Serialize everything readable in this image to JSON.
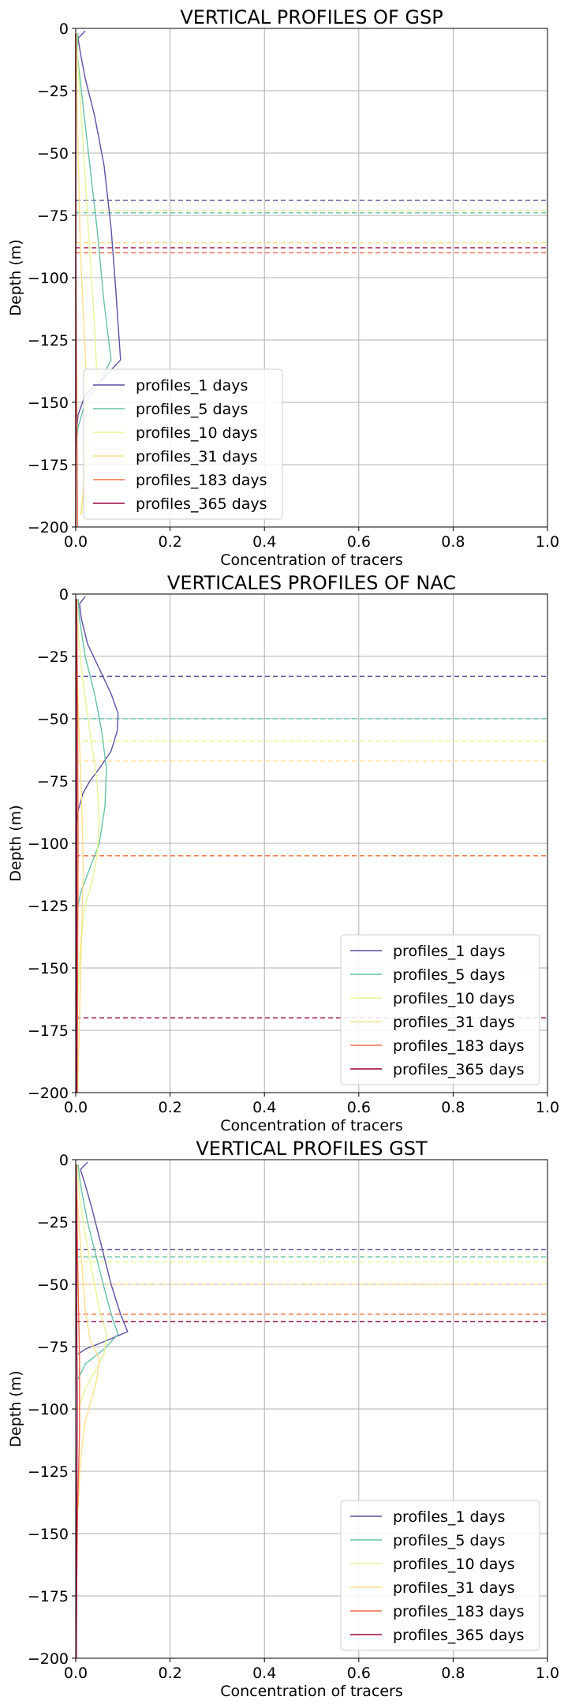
{
  "chart_data": [
    {
      "type": "line",
      "title": "VERTICAL PROFILES OF GSP",
      "xlabel": "Concentration of tracers",
      "ylabel": "Depth (m)",
      "xlim": [
        0,
        1
      ],
      "ylim": [
        -200,
        0
      ],
      "xticks": [
        "0.0",
        "0.2",
        "0.4",
        "0.6",
        "0.8",
        "1.0"
      ],
      "yticks": [
        "0",
        "−25",
        "−50",
        "−75",
        "−100",
        "−125",
        "−150",
        "−175",
        "−200"
      ],
      "grid": true,
      "legend_position": "lower-left",
      "series": [
        {
          "name": "profiles_1 days",
          "color": "#5e4fa2",
          "mld": -69,
          "points": [
            [
              0.02,
              -1
            ],
            [
              0.005,
              -4
            ],
            [
              0.01,
              -10
            ],
            [
              0.02,
              -20
            ],
            [
              0.04,
              -35
            ],
            [
              0.06,
              -55
            ],
            [
              0.075,
              -80
            ],
            [
              0.085,
              -105
            ],
            [
              0.095,
              -133
            ],
            [
              0.06,
              -140
            ],
            [
              0.02,
              -147
            ],
            [
              0.005,
              -155
            ],
            [
              0.0,
              -165
            ]
          ]
        },
        {
          "name": "profiles_5 days",
          "color": "#66c2a5",
          "mld": -74,
          "points": [
            [
              0.005,
              -2
            ],
            [
              0.003,
              -10
            ],
            [
              0.015,
              -30
            ],
            [
              0.03,
              -55
            ],
            [
              0.045,
              -80
            ],
            [
              0.06,
              -110
            ],
            [
              0.075,
              -133
            ],
            [
              0.05,
              -142
            ],
            [
              0.02,
              -150
            ],
            [
              0.005,
              -160
            ],
            [
              0.0,
              -168
            ]
          ]
        },
        {
          "name": "profiles_10 days",
          "color": "#e6f598",
          "mld": -73,
          "points": [
            [
              0.002,
              -2
            ],
            [
              0.003,
              -10
            ],
            [
              0.01,
              -30
            ],
            [
              0.02,
              -60
            ],
            [
              0.03,
              -90
            ],
            [
              0.04,
              -120
            ],
            [
              0.045,
              -140
            ],
            [
              0.035,
              -160
            ],
            [
              0.02,
              -180
            ],
            [
              0.01,
              -195
            ]
          ]
        },
        {
          "name": "profiles_31 days",
          "color": "#fee08b",
          "mld": -86,
          "points": [
            [
              0.0,
              -2
            ],
            [
              0.002,
              -20
            ],
            [
              0.005,
              -50
            ],
            [
              0.01,
              -90
            ],
            [
              0.02,
              -130
            ],
            [
              0.025,
              -155
            ],
            [
              0.02,
              -175
            ],
            [
              0.012,
              -195
            ]
          ]
        },
        {
          "name": "profiles_183 days",
          "color": "#f46d43",
          "mld": -90,
          "points": [
            [
              0.0,
              -2
            ],
            [
              0.0,
              -80
            ],
            [
              0.002,
              -150
            ],
            [
              0.004,
              -200
            ]
          ]
        },
        {
          "name": "profiles_365 days",
          "color": "#9e0142",
          "mld": -88,
          "points": [
            [
              0.0,
              -2
            ],
            [
              0.0,
              -100
            ],
            [
              0.0,
              -200
            ]
          ]
        }
      ]
    },
    {
      "type": "line",
      "title": "VERTICALES PROFILES OF NAC",
      "xlabel": "Concentration of tracers",
      "ylabel": "Depth (m)",
      "xlim": [
        0,
        1
      ],
      "ylim": [
        -200,
        0
      ],
      "xticks": [
        "0.0",
        "0.2",
        "0.4",
        "0.6",
        "0.8",
        "1.0"
      ],
      "yticks": [
        "0",
        "−25",
        "−50",
        "−75",
        "−100",
        "−125",
        "−150",
        "−175",
        "−200"
      ],
      "grid": true,
      "legend_position": "lower-right",
      "series": [
        {
          "name": "profiles_1 days",
          "color": "#5e4fa2",
          "mld": -33,
          "points": [
            [
              0.02,
              -1
            ],
            [
              0.008,
              -4
            ],
            [
              0.012,
              -10
            ],
            [
              0.025,
              -20
            ],
            [
              0.05,
              -30
            ],
            [
              0.075,
              -40
            ],
            [
              0.09,
              -48
            ],
            [
              0.088,
              -55
            ],
            [
              0.075,
              -63
            ],
            [
              0.05,
              -70
            ],
            [
              0.03,
              -75
            ],
            [
              0.015,
              -80
            ],
            [
              0.005,
              -87
            ],
            [
              0.0,
              -95
            ]
          ]
        },
        {
          "name": "profiles_5 days",
          "color": "#66c2a5",
          "mld": -50,
          "points": [
            [
              0.005,
              -2
            ],
            [
              0.008,
              -10
            ],
            [
              0.02,
              -25
            ],
            [
              0.04,
              -40
            ],
            [
              0.055,
              -55
            ],
            [
              0.065,
              -70
            ],
            [
              0.062,
              -85
            ],
            [
              0.05,
              -100
            ],
            [
              0.03,
              -110
            ],
            [
              0.01,
              -120
            ],
            [
              0.0,
              -130
            ]
          ]
        },
        {
          "name": "profiles_10 days",
          "color": "#e6f598",
          "mld": -59,
          "points": [
            [
              0.003,
              -2
            ],
            [
              0.005,
              -15
            ],
            [
              0.015,
              -35
            ],
            [
              0.03,
              -55
            ],
            [
              0.045,
              -75
            ],
            [
              0.05,
              -90
            ],
            [
              0.045,
              -105
            ],
            [
              0.035,
              -115
            ],
            [
              0.02,
              -125
            ],
            [
              0.01,
              -140
            ],
            [
              0.005,
              -160
            ],
            [
              0.002,
              -185
            ]
          ]
        },
        {
          "name": "profiles_31 days",
          "color": "#fee08b",
          "mld": -67,
          "points": [
            [
              0.0,
              -2
            ],
            [
              0.002,
              -20
            ],
            [
              0.006,
              -50
            ],
            [
              0.012,
              -80
            ],
            [
              0.016,
              -110
            ],
            [
              0.012,
              -140
            ],
            [
              0.008,
              -170
            ],
            [
              0.004,
              -200
            ]
          ]
        },
        {
          "name": "profiles_183 days",
          "color": "#f46d43",
          "mld": -105,
          "points": [
            [
              0.002,
              -2
            ],
            [
              0.004,
              -50
            ],
            [
              0.005,
              -100
            ],
            [
              0.004,
              -150
            ],
            [
              0.003,
              -200
            ]
          ]
        },
        {
          "name": "profiles_365 days",
          "color": "#9e0142",
          "mld": -170,
          "points": [
            [
              0.001,
              -2
            ],
            [
              0.002,
              -100
            ],
            [
              0.002,
              -200
            ]
          ]
        }
      ]
    },
    {
      "type": "line",
      "title": "VERTICAL PROFILES GST",
      "xlabel": "Concentration of tracers",
      "ylabel": "Depth (m)",
      "xlim": [
        0,
        1
      ],
      "ylim": [
        -200,
        0
      ],
      "xticks": [
        "0.0",
        "0.2",
        "0.4",
        "0.6",
        "0.8",
        "1.0"
      ],
      "yticks": [
        "0",
        "−25",
        "−50",
        "−75",
        "−100",
        "−125",
        "−150",
        "−175",
        "−200"
      ],
      "grid": true,
      "legend_position": "lower-right",
      "series": [
        {
          "name": "profiles_1 days",
          "color": "#5e4fa2",
          "mld": -36,
          "points": [
            [
              0.025,
              -1
            ],
            [
              0.01,
              -4
            ],
            [
              0.02,
              -10
            ],
            [
              0.035,
              -20
            ],
            [
              0.055,
              -35
            ],
            [
              0.075,
              -50
            ],
            [
              0.095,
              -62
            ],
            [
              0.11,
              -69
            ],
            [
              0.06,
              -73
            ],
            [
              0.02,
              -76
            ],
            [
              0.005,
              -78
            ]
          ]
        },
        {
          "name": "profiles_5 days",
          "color": "#66c2a5",
          "mld": -39,
          "points": [
            [
              0.005,
              -2
            ],
            [
              0.01,
              -10
            ],
            [
              0.025,
              -25
            ],
            [
              0.045,
              -40
            ],
            [
              0.065,
              -55
            ],
            [
              0.08,
              -65
            ],
            [
              0.09,
              -70
            ],
            [
              0.06,
              -76
            ],
            [
              0.02,
              -82
            ],
            [
              0.005,
              -88
            ]
          ]
        },
        {
          "name": "profiles_10 days",
          "color": "#e6f598",
          "mld": -41,
          "points": [
            [
              0.003,
              -2
            ],
            [
              0.008,
              -15
            ],
            [
              0.02,
              -30
            ],
            [
              0.035,
              -45
            ],
            [
              0.05,
              -60
            ],
            [
              0.065,
              -70
            ],
            [
              0.06,
              -78
            ],
            [
              0.04,
              -85
            ],
            [
              0.02,
              -92
            ],
            [
              0.005,
              -100
            ]
          ]
        },
        {
          "name": "profiles_31 days",
          "color": "#fee08b",
          "mld": -50,
          "points": [
            [
              0.0,
              -2
            ],
            [
              0.005,
              -20
            ],
            [
              0.012,
              -40
            ],
            [
              0.02,
              -60
            ],
            [
              0.03,
              -72
            ],
            [
              0.045,
              -78
            ],
            [
              0.05,
              -80
            ],
            [
              0.045,
              -88
            ],
            [
              0.035,
              -95
            ],
            [
              0.02,
              -105
            ],
            [
              0.01,
              -120
            ],
            [
              0.005,
              -140
            ]
          ]
        },
        {
          "name": "profiles_183 days",
          "color": "#f46d43",
          "mld": -62,
          "points": [
            [
              0.001,
              -2
            ],
            [
              0.004,
              -40
            ],
            [
              0.008,
              -80
            ],
            [
              0.008,
              -110
            ],
            [
              0.004,
              -140
            ],
            [
              0.002,
              -170
            ],
            [
              0.001,
              -200
            ]
          ]
        },
        {
          "name": "profiles_365 days",
          "color": "#9e0142",
          "mld": -65,
          "points": [
            [
              0.001,
              -2
            ],
            [
              0.002,
              -60
            ],
            [
              0.003,
              -100
            ],
            [
              0.002,
              -150
            ],
            [
              0.001,
              -200
            ]
          ]
        }
      ]
    }
  ]
}
